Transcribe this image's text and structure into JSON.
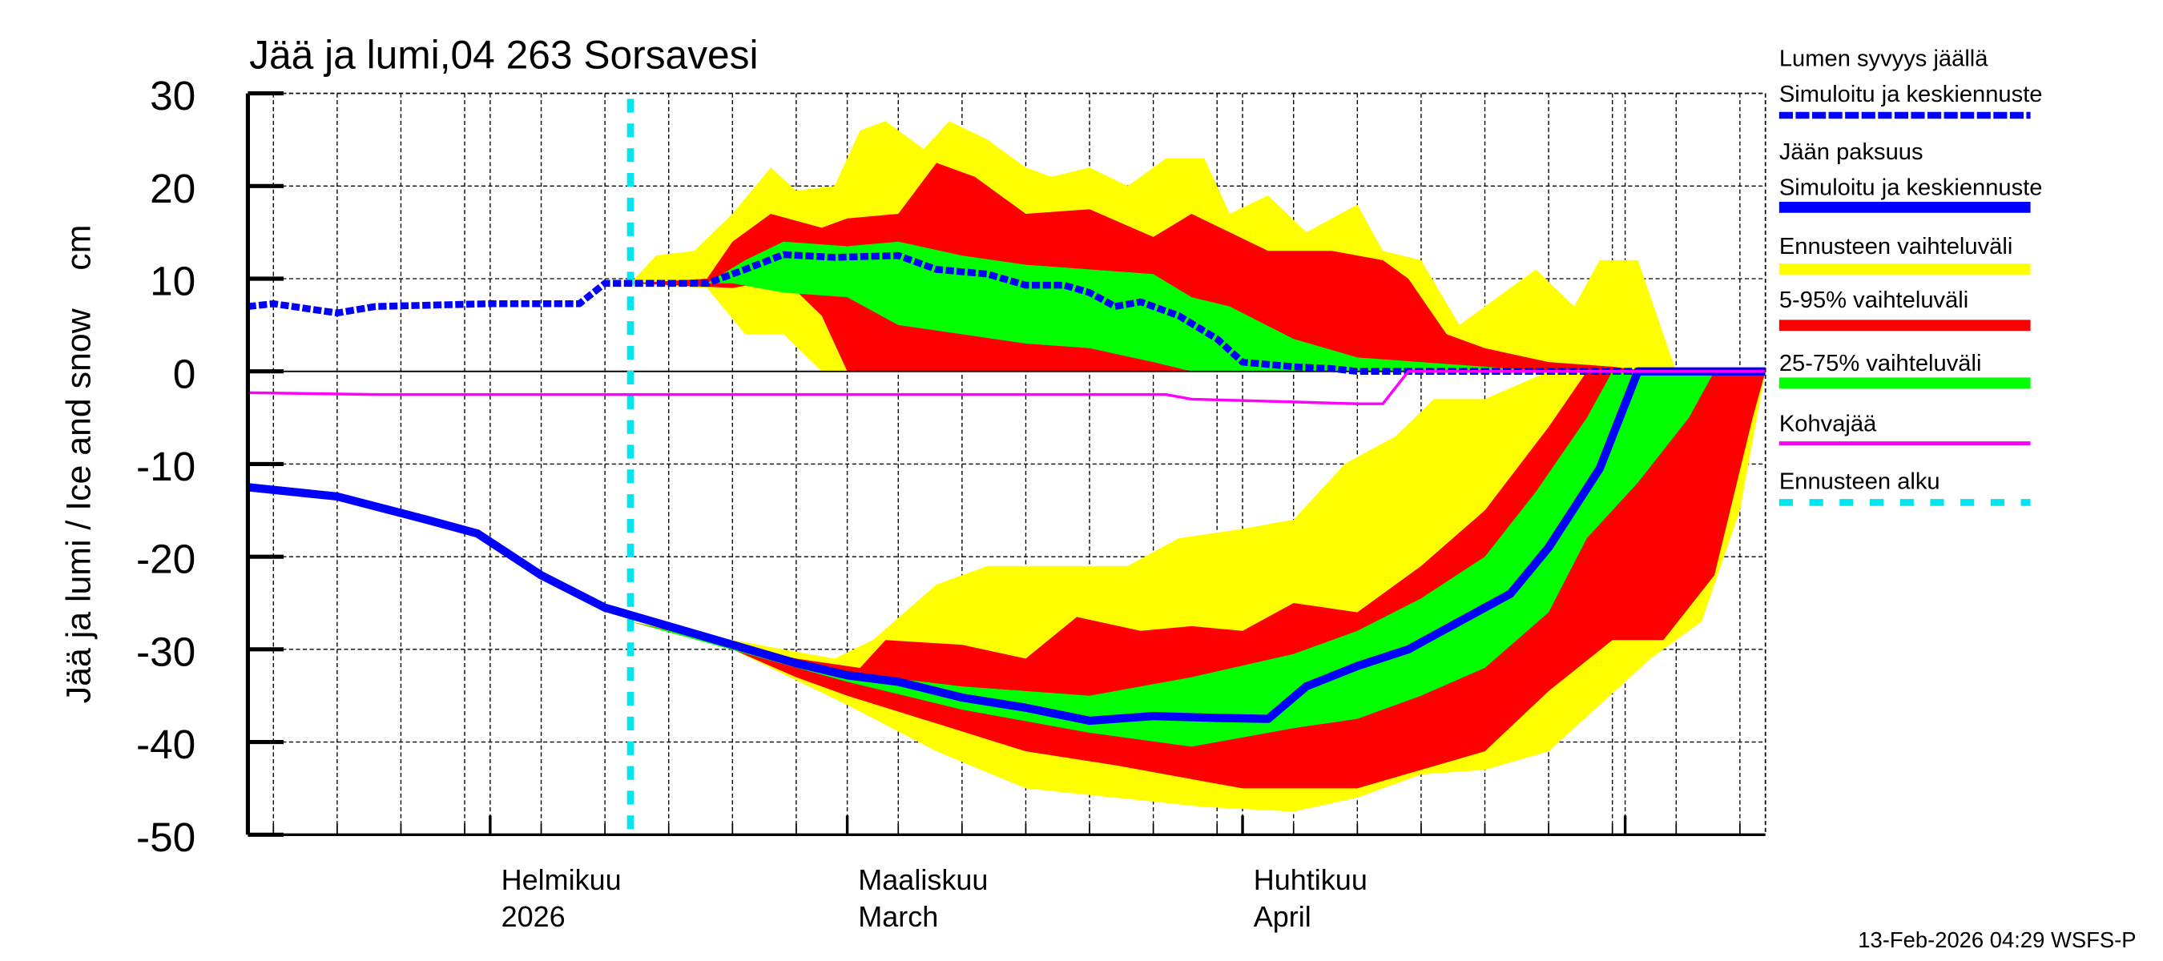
{
  "chart_data": {
    "type": "area",
    "title": "Jää ja lumi,04 263 Sorsavesi",
    "ylabel": "Jää ja lumi / Ice and snow    cm",
    "ylim": [
      -50,
      30
    ],
    "yticks": [
      30,
      20,
      10,
      0,
      -10,
      -20,
      -30,
      -40,
      -50
    ],
    "xlim": [
      "2026-01-13",
      "2026-05-12"
    ],
    "grid": true,
    "legend_placement": "right",
    "x_tick_labels": [
      {
        "date": "2026-02-01",
        "line1": "Helmikuu",
        "line2": "2026"
      },
      {
        "date": "2026-03-01",
        "line1": "Maaliskuu",
        "line2": "March"
      },
      {
        "date": "2026-04-01",
        "line1": "Huhtikuu",
        "line2": "April"
      }
    ],
    "forecast_start": "2026-02-12",
    "colors": {
      "snow": "#0000ff",
      "ice": "#0000ff",
      "range": "#ffff00",
      "p5_95": "#ff0000",
      "p25_75": "#00ff00",
      "slush": "#ff00ff",
      "forecast_start": "#00e5ee"
    },
    "legend": [
      {
        "line1": "Lumen syvyys jäällä",
        "line2": "Simuloitu ja keskiennuste",
        "style": "dotted",
        "color": "#0000ff"
      },
      {
        "line1": "Jään paksuus",
        "line2": "Simuloitu ja keskiennuste",
        "style": "solid",
        "color": "#0000ff"
      },
      {
        "line1": "Ennusteen vaihteluväli",
        "style": "band",
        "color": "#ffff00"
      },
      {
        "line1": "5-95% vaihteluväli",
        "style": "band",
        "color": "#ff0000"
      },
      {
        "line1": "25-75% vaihteluväli",
        "style": "band",
        "color": "#00ff00"
      },
      {
        "line1": "Kohvajää",
        "style": "thin",
        "color": "#ff00ff"
      },
      {
        "line1": "Ennusteen alku",
        "style": "dashed",
        "color": "#00e5ee"
      }
    ],
    "bands": [
      {
        "name": "snow-range",
        "color": "#ffff00",
        "upper": [
          [
            "2026-02-12",
            9.5
          ],
          [
            "2026-02-14",
            12.5
          ],
          [
            "2026-02-17",
            13
          ],
          [
            "2026-02-20",
            17
          ],
          [
            "2026-02-23",
            22
          ],
          [
            "2026-02-25",
            19.5
          ],
          [
            "2026-02-28",
            20
          ],
          [
            "2026-03-02",
            26
          ],
          [
            "2026-03-04",
            27
          ],
          [
            "2026-03-07",
            24
          ],
          [
            "2026-03-09",
            27
          ],
          [
            "2026-03-12",
            25
          ],
          [
            "2026-03-15",
            22
          ],
          [
            "2026-03-17",
            21
          ],
          [
            "2026-03-20",
            22
          ],
          [
            "2026-03-23",
            20
          ],
          [
            "2026-03-26",
            23
          ],
          [
            "2026-03-29",
            23
          ],
          [
            "2026-03-31",
            17
          ],
          [
            "2026-04-03",
            19
          ],
          [
            "2026-04-06",
            15
          ],
          [
            "2026-04-10",
            18
          ],
          [
            "2026-04-12",
            13
          ],
          [
            "2026-04-15",
            12
          ],
          [
            "2026-04-18",
            5
          ],
          [
            "2026-04-21",
            8
          ],
          [
            "2026-04-24",
            11
          ],
          [
            "2026-04-27",
            7
          ],
          [
            "2026-04-29",
            12
          ],
          [
            "2026-05-02",
            12
          ],
          [
            "2026-05-05",
            0
          ]
        ],
        "lower": [
          [
            "2026-02-12",
            9.5
          ],
          [
            "2026-02-18",
            9
          ],
          [
            "2026-02-21",
            4
          ],
          [
            "2026-02-24",
            4
          ],
          [
            "2026-02-27",
            0
          ],
          [
            "2026-05-05",
            0
          ]
        ]
      },
      {
        "name": "snow-5-95",
        "color": "#ff0000",
        "upper": [
          [
            "2026-02-12",
            9.5
          ],
          [
            "2026-02-18",
            10
          ],
          [
            "2026-02-20",
            14
          ],
          [
            "2026-02-23",
            17
          ],
          [
            "2026-02-27",
            15.5
          ],
          [
            "2026-03-01",
            16.5
          ],
          [
            "2026-03-05",
            17
          ],
          [
            "2026-03-08",
            22.5
          ],
          [
            "2026-03-11",
            21
          ],
          [
            "2026-03-15",
            17
          ],
          [
            "2026-03-20",
            17.5
          ],
          [
            "2026-03-25",
            14.5
          ],
          [
            "2026-03-28",
            17
          ],
          [
            "2026-03-31",
            15
          ],
          [
            "2026-04-03",
            13
          ],
          [
            "2026-04-08",
            13
          ],
          [
            "2026-04-12",
            12
          ],
          [
            "2026-04-14",
            10
          ],
          [
            "2026-04-17",
            4
          ],
          [
            "2026-04-20",
            2.5
          ],
          [
            "2026-04-25",
            1
          ],
          [
            "2026-04-30",
            0.5
          ],
          [
            "2026-05-03",
            0
          ]
        ],
        "lower": [
          [
            "2026-02-12",
            9.5
          ],
          [
            "2026-02-20",
            9
          ],
          [
            "2026-02-24",
            10
          ],
          [
            "2026-02-27",
            6
          ],
          [
            "2026-03-01",
            0
          ],
          [
            "2026-05-03",
            0
          ]
        ]
      },
      {
        "name": "snow-25-75",
        "color": "#00ff00",
        "upper": [
          [
            "2026-02-12",
            9.5
          ],
          [
            "2026-02-18",
            9.5
          ],
          [
            "2026-02-21",
            12
          ],
          [
            "2026-02-24",
            14
          ],
          [
            "2026-03-01",
            13.5
          ],
          [
            "2026-03-05",
            14
          ],
          [
            "2026-03-10",
            12.5
          ],
          [
            "2026-03-15",
            11.5
          ],
          [
            "2026-03-20",
            11
          ],
          [
            "2026-03-25",
            10.5
          ],
          [
            "2026-03-28",
            8
          ],
          [
            "2026-03-31",
            7
          ],
          [
            "2026-04-05",
            3.5
          ],
          [
            "2026-04-10",
            1.5
          ],
          [
            "2026-04-15",
            1
          ],
          [
            "2026-04-20",
            0.5
          ],
          [
            "2026-04-25",
            0
          ]
        ],
        "lower": [
          [
            "2026-02-12",
            9.5
          ],
          [
            "2026-02-20",
            9.5
          ],
          [
            "2026-02-24",
            8.5
          ],
          [
            "2026-03-01",
            8
          ],
          [
            "2026-03-05",
            5
          ],
          [
            "2026-03-10",
            4
          ],
          [
            "2026-03-15",
            3
          ],
          [
            "2026-03-20",
            2.5
          ],
          [
            "2026-03-25",
            1
          ],
          [
            "2026-03-28",
            0
          ],
          [
            "2026-04-25",
            0
          ]
        ]
      },
      {
        "name": "ice-range",
        "color": "#ffff00",
        "upper": [
          [
            "2026-02-12",
            -27
          ],
          [
            "2026-02-20",
            -29
          ],
          [
            "2026-02-28",
            -31
          ],
          [
            "2026-03-03",
            -29
          ],
          [
            "2026-03-08",
            -23
          ],
          [
            "2026-03-12",
            -21
          ],
          [
            "2026-03-16",
            -21
          ],
          [
            "2026-03-20",
            -21
          ],
          [
            "2026-03-23",
            -21
          ],
          [
            "2026-03-27",
            -18
          ],
          [
            "2026-04-01",
            -17
          ],
          [
            "2026-04-05",
            -16
          ],
          [
            "2026-04-09",
            -10
          ],
          [
            "2026-04-13",
            -7
          ],
          [
            "2026-04-16",
            -3
          ],
          [
            "2026-04-20",
            -3
          ],
          [
            "2026-04-25",
            0
          ],
          [
            "2026-05-12",
            0
          ]
        ],
        "lower": [
          [
            "2026-02-12",
            -27
          ],
          [
            "2026-02-20",
            -30
          ],
          [
            "2026-03-01",
            -36
          ],
          [
            "2026-03-08",
            -41
          ],
          [
            "2026-03-15",
            -45
          ],
          [
            "2026-03-22",
            -46
          ],
          [
            "2026-03-29",
            -47
          ],
          [
            "2026-04-05",
            -47.5
          ],
          [
            "2026-04-10",
            -46
          ],
          [
            "2026-04-15",
            -43.5
          ],
          [
            "2026-04-20",
            -43
          ],
          [
            "2026-04-25",
            -41
          ],
          [
            "2026-04-29",
            -36
          ],
          [
            "2026-05-03",
            -31
          ],
          [
            "2026-05-07",
            -27
          ],
          [
            "2026-05-10",
            -15
          ],
          [
            "2026-05-12",
            0
          ]
        ]
      },
      {
        "name": "ice-5-95",
        "color": "#ff0000",
        "upper": [
          [
            "2026-02-12",
            -27
          ],
          [
            "2026-02-25",
            -31
          ],
          [
            "2026-03-02",
            -32
          ],
          [
            "2026-03-04",
            -29
          ],
          [
            "2026-03-10",
            -29.5
          ],
          [
            "2026-03-15",
            -31
          ],
          [
            "2026-03-19",
            -26.5
          ],
          [
            "2026-03-24",
            -28
          ],
          [
            "2026-03-28",
            -27.5
          ],
          [
            "2026-04-01",
            -28
          ],
          [
            "2026-04-05",
            -25
          ],
          [
            "2026-04-10",
            -26
          ],
          [
            "2026-04-15",
            -21
          ],
          [
            "2026-04-20",
            -15
          ],
          [
            "2026-04-25",
            -6
          ],
          [
            "2026-04-28",
            0
          ],
          [
            "2026-05-12",
            0
          ]
        ],
        "lower": [
          [
            "2026-02-12",
            -27
          ],
          [
            "2026-02-20",
            -30
          ],
          [
            "2026-02-25",
            -33
          ],
          [
            "2026-03-01",
            -35
          ],
          [
            "2026-03-08",
            -38
          ],
          [
            "2026-03-15",
            -41
          ],
          [
            "2026-03-22",
            -42.5
          ],
          [
            "2026-04-01",
            -45
          ],
          [
            "2026-04-10",
            -45
          ],
          [
            "2026-04-15",
            -43
          ],
          [
            "2026-04-20",
            -41
          ],
          [
            "2026-04-25",
            -34.5
          ],
          [
            "2026-04-30",
            -29
          ],
          [
            "2026-05-04",
            -29
          ],
          [
            "2026-05-08",
            -22
          ],
          [
            "2026-05-11",
            -5
          ],
          [
            "2026-05-12",
            0
          ]
        ]
      },
      {
        "name": "ice-25-75",
        "color": "#00ff00",
        "upper": [
          [
            "2026-02-12",
            -27
          ],
          [
            "2026-03-01",
            -32.5
          ],
          [
            "2026-03-10",
            -34
          ],
          [
            "2026-03-20",
            -35
          ],
          [
            "2026-03-28",
            -33
          ],
          [
            "2026-04-05",
            -30.5
          ],
          [
            "2026-04-10",
            -28
          ],
          [
            "2026-04-15",
            -24.5
          ],
          [
            "2026-04-20",
            -20
          ],
          [
            "2026-04-24",
            -13
          ],
          [
            "2026-04-28",
            -5
          ],
          [
            "2026-04-30",
            0
          ],
          [
            "2026-05-08",
            0
          ]
        ],
        "lower": [
          [
            "2026-02-12",
            -27
          ],
          [
            "2026-03-01",
            -33.5
          ],
          [
            "2026-03-10",
            -36.5
          ],
          [
            "2026-03-20",
            -39
          ],
          [
            "2026-03-28",
            -40.5
          ],
          [
            "2026-04-05",
            -38.5
          ],
          [
            "2026-04-10",
            -37.5
          ],
          [
            "2026-04-15",
            -35
          ],
          [
            "2026-04-20",
            -32
          ],
          [
            "2026-04-25",
            -26
          ],
          [
            "2026-04-28",
            -18
          ],
          [
            "2026-05-02",
            -12
          ],
          [
            "2026-05-06",
            -5
          ],
          [
            "2026-05-08",
            0
          ]
        ]
      }
    ],
    "series": [
      {
        "name": "Lumen syvyys jäällä",
        "style": "dotted",
        "color": "#0000ff",
        "points": [
          [
            "2026-01-13",
            7
          ],
          [
            "2026-01-15",
            7.3
          ],
          [
            "2026-01-20",
            6.3
          ],
          [
            "2026-01-23",
            7
          ],
          [
            "2026-02-01",
            7.3
          ],
          [
            "2026-02-08",
            7.3
          ],
          [
            "2026-02-10",
            9.5
          ],
          [
            "2026-02-12",
            9.5
          ],
          [
            "2026-02-18",
            9.5
          ],
          [
            "2026-02-21",
            11
          ],
          [
            "2026-02-24",
            12.6
          ],
          [
            "2026-02-28",
            12.3
          ],
          [
            "2026-03-05",
            12.5
          ],
          [
            "2026-03-08",
            11
          ],
          [
            "2026-03-12",
            10.5
          ],
          [
            "2026-03-15",
            9.3
          ],
          [
            "2026-03-18",
            9.3
          ],
          [
            "2026-03-20",
            8.5
          ],
          [
            "2026-03-22",
            7
          ],
          [
            "2026-03-24",
            7.5
          ],
          [
            "2026-03-27",
            6
          ],
          [
            "2026-03-30",
            3.5
          ],
          [
            "2026-04-01",
            1
          ],
          [
            "2026-04-05",
            0.5
          ],
          [
            "2026-04-08",
            0.3
          ],
          [
            "2026-04-10",
            0
          ],
          [
            "2026-05-12",
            0
          ]
        ]
      },
      {
        "name": "Jään paksuus",
        "style": "solid",
        "color": "#0000ff",
        "points": [
          [
            "2026-01-13",
            -12.5
          ],
          [
            "2026-01-20",
            -13.5
          ],
          [
            "2026-01-27",
            -16
          ],
          [
            "2026-01-31",
            -17.5
          ],
          [
            "2026-02-05",
            -22
          ],
          [
            "2026-02-10",
            -25.5
          ],
          [
            "2026-02-15",
            -27.5
          ],
          [
            "2026-02-20",
            -29.5
          ],
          [
            "2026-02-25",
            -31.5
          ],
          [
            "2026-03-01",
            -32.8
          ],
          [
            "2026-03-05",
            -33.5
          ],
          [
            "2026-03-10",
            -35.2
          ],
          [
            "2026-03-15",
            -36.3
          ],
          [
            "2026-03-20",
            -37.7
          ],
          [
            "2026-03-25",
            -37.2
          ],
          [
            "2026-03-30",
            -37.4
          ],
          [
            "2026-04-03",
            -37.5
          ],
          [
            "2026-04-06",
            -34
          ],
          [
            "2026-04-10",
            -31.8
          ],
          [
            "2026-04-14",
            -30
          ],
          [
            "2026-04-18",
            -27
          ],
          [
            "2026-04-22",
            -24
          ],
          [
            "2026-04-25",
            -19
          ],
          [
            "2026-04-29",
            -10.5
          ],
          [
            "2026-05-02",
            0
          ],
          [
            "2026-05-12",
            0
          ]
        ]
      },
      {
        "name": "Kohvajää",
        "style": "thin",
        "color": "#ff00ff",
        "points": [
          [
            "2026-01-13",
            -2.3
          ],
          [
            "2026-01-23",
            -2.5
          ],
          [
            "2026-03-26",
            -2.5
          ],
          [
            "2026-03-28",
            -3
          ],
          [
            "2026-04-05",
            -3.3
          ],
          [
            "2026-04-10",
            -3.5
          ],
          [
            "2026-04-12",
            -3.5
          ],
          [
            "2026-04-14",
            0
          ],
          [
            "2026-05-12",
            0
          ]
        ]
      }
    ]
  },
  "footer": {
    "timestamp": "13-Feb-2026 04:29 WSFS-P"
  }
}
